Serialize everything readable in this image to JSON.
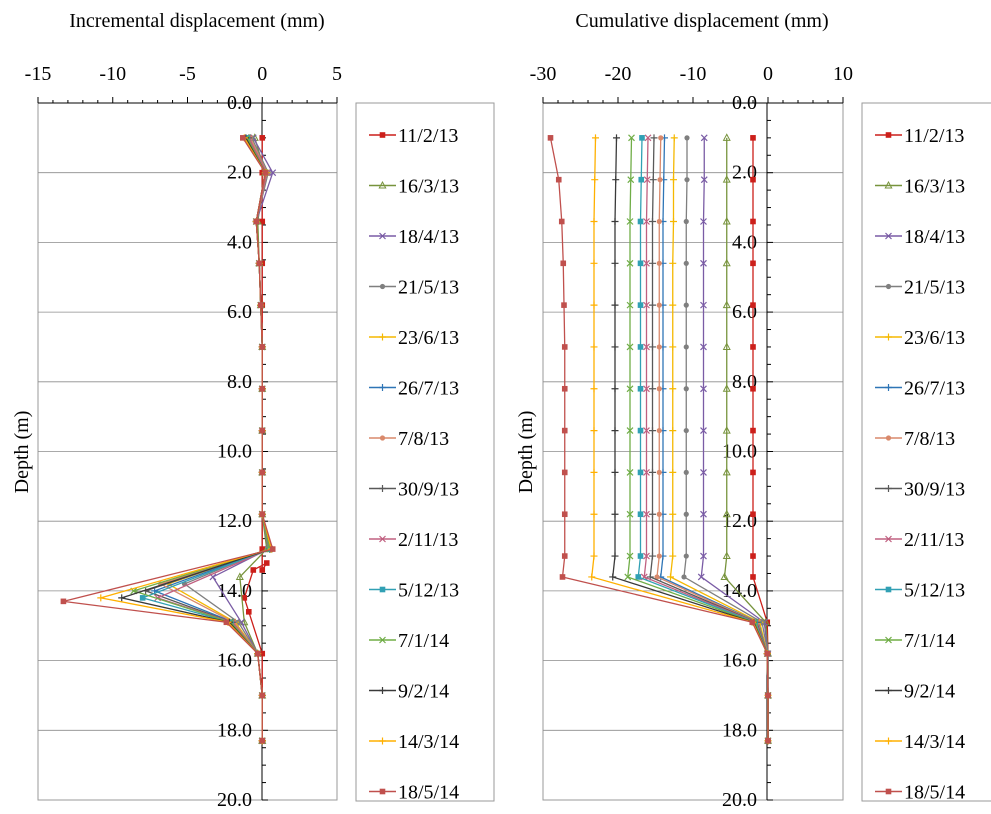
{
  "chart_data": [
    {
      "type": "line",
      "title": "Incremental displacement (mm)",
      "xlabel": "Incremental displacement (mm)",
      "ylabel": "Depth (m)",
      "xlim": [
        -15,
        5
      ],
      "ylim": [
        0,
        20
      ],
      "y_inverted": true,
      "x_ticks": [
        "-15",
        "-10",
        "-5",
        "0",
        "5"
      ],
      "y_ticks": [
        "0.0",
        "2.0",
        "4.0",
        "6.0",
        "8.0",
        "10.0",
        "12.0",
        "14.0",
        "16.0",
        "18.0",
        "20.0"
      ],
      "grid": "horizontal",
      "legend_position": "right",
      "series": [
        {
          "name": "11/2/13",
          "color": "#cc1f1a",
          "marker": "square",
          "x": [
            0,
            0,
            0,
            0,
            0,
            0,
            0,
            0,
            0,
            0,
            0,
            0,
            0.3,
            -0.6,
            -1.2,
            -0.9,
            0,
            0,
            0,
            0
          ],
          "y": [
            1,
            2,
            3.4,
            4.6,
            5.8,
            7,
            8.2,
            9.4,
            10.6,
            11.8,
            12.8,
            13.4,
            13.2,
            13.4,
            14.2,
            14.6,
            15.8,
            17,
            18.3,
            18.3
          ]
        },
        {
          "name": "16/3/13",
          "color": "#77933c",
          "marker": "triangle",
          "x": [
            -0.5,
            0.2,
            -0.3,
            -0.2,
            -0.1,
            0,
            0,
            0,
            0,
            0,
            0.3,
            -1.5,
            -1.2,
            -0.3,
            0,
            0,
            0
          ],
          "y": [
            1,
            2,
            3.4,
            4.6,
            5.8,
            7,
            8.2,
            9.4,
            10.6,
            11.8,
            12.8,
            13.6,
            14.9,
            15.8,
            17,
            18.3,
            18.3
          ]
        },
        {
          "name": "18/4/13",
          "color": "#7a5ca5",
          "marker": "x",
          "x": [
            -0.6,
            0.7,
            -0.4,
            -0.2,
            -0.1,
            0,
            0,
            0,
            0,
            0,
            0.4,
            -3.3,
            -1.4,
            -0.3,
            0,
            0,
            0
          ],
          "y": [
            1,
            2,
            3.4,
            4.6,
            5.8,
            7,
            8.2,
            9.4,
            10.6,
            11.8,
            12.8,
            13.6,
            14.9,
            15.8,
            17,
            18.3,
            18.3
          ]
        },
        {
          "name": "21/5/13",
          "color": "#7f7f7f",
          "marker": "circle",
          "x": [
            -0.7,
            0.4,
            -0.4,
            -0.2,
            -0.1,
            0,
            0,
            0,
            0,
            0,
            0.4,
            -5.2,
            -1.6,
            -0.3,
            0,
            0,
            0
          ],
          "y": [
            1,
            2,
            3.4,
            4.6,
            5.8,
            7,
            8.2,
            9.4,
            10.6,
            11.8,
            12.8,
            13.8,
            14.9,
            15.8,
            17,
            18.3,
            18.3
          ]
        },
        {
          "name": "23/6/13",
          "color": "#f5b800",
          "marker": "plus",
          "x": [
            -0.8,
            0.3,
            -0.4,
            -0.2,
            -0.1,
            0,
            0,
            0,
            0,
            0,
            0.5,
            -6.3,
            -1.8,
            -0.3,
            0,
            0,
            0
          ],
          "y": [
            1,
            2,
            3.4,
            4.6,
            5.8,
            7,
            8.2,
            9.4,
            10.6,
            11.8,
            12.8,
            13.8,
            14.9,
            15.8,
            17,
            18.3,
            18.3
          ]
        },
        {
          "name": "26/7/13",
          "color": "#2e75b6",
          "marker": "plus",
          "x": [
            -0.8,
            0.2,
            -0.4,
            -0.2,
            -0.1,
            0,
            0,
            0,
            0,
            0,
            0.5,
            -7.2,
            -1.9,
            -0.3,
            0,
            0,
            0
          ],
          "y": [
            1,
            2,
            3.4,
            4.6,
            5.8,
            7,
            8.2,
            9.4,
            10.6,
            11.8,
            12.8,
            14,
            14.9,
            15.8,
            17,
            18.3,
            18.3
          ]
        },
        {
          "name": "7/8/13",
          "color": "#d9896b",
          "marker": "circle",
          "x": [
            -0.8,
            0.3,
            -0.4,
            -0.2,
            -0.1,
            0,
            0,
            0,
            0,
            0,
            0.5,
            -6.8,
            -1.9,
            -0.3,
            0,
            0,
            0
          ],
          "y": [
            1,
            2,
            3.4,
            4.6,
            5.8,
            7,
            8.2,
            9.4,
            10.6,
            11.8,
            12.8,
            13.8,
            14.9,
            15.8,
            17,
            18.3,
            18.3
          ]
        },
        {
          "name": "30/9/13",
          "color": "#595959",
          "marker": "plus",
          "x": [
            -0.9,
            0.2,
            -0.4,
            -0.2,
            -0.1,
            0,
            0,
            0,
            0,
            0,
            0.5,
            -7.8,
            -2,
            -0.3,
            0,
            0,
            0
          ],
          "y": [
            1,
            2,
            3.4,
            4.6,
            5.8,
            7,
            8.2,
            9.4,
            10.6,
            11.8,
            12.8,
            14,
            14.9,
            15.8,
            17,
            18.3,
            18.3
          ]
        },
        {
          "name": "2/11/13",
          "color": "#c06080",
          "marker": "x",
          "x": [
            -0.9,
            0.3,
            -0.4,
            -0.2,
            -0.1,
            0,
            0,
            0,
            0,
            0,
            0.5,
            -7,
            -2,
            -0.3,
            0,
            0,
            0
          ],
          "y": [
            1,
            2,
            3.4,
            4.6,
            5.8,
            7,
            8.2,
            9.4,
            10.6,
            11.8,
            12.8,
            14.2,
            14.9,
            15.8,
            17,
            18.3,
            18.3
          ]
        },
        {
          "name": "5/12/13",
          "color": "#31a0b4",
          "marker": "square",
          "x": [
            -1,
            0.2,
            -0.4,
            -0.2,
            -0.1,
            0,
            0,
            0,
            0,
            0,
            0.5,
            -8,
            -2.1,
            -0.3,
            0,
            0,
            0
          ],
          "y": [
            1,
            2,
            3.4,
            4.6,
            5.8,
            7,
            8.2,
            9.4,
            10.6,
            11.8,
            12.8,
            14.2,
            14.9,
            15.8,
            17,
            18.3,
            18.3
          ]
        },
        {
          "name": "7/1/14",
          "color": "#70ad47",
          "marker": "x",
          "x": [
            -1,
            0.2,
            -0.4,
            -0.2,
            -0.1,
            0,
            0,
            0,
            0,
            0,
            0.5,
            -8.6,
            -2.1,
            -0.3,
            0,
            0,
            0
          ],
          "y": [
            1,
            2,
            3.4,
            4.6,
            5.8,
            7,
            8.2,
            9.4,
            10.6,
            11.8,
            12.8,
            14,
            14.9,
            15.8,
            17,
            18.3,
            18.3
          ]
        },
        {
          "name": "9/2/14",
          "color": "#3a3a3a",
          "marker": "plus",
          "x": [
            -1.1,
            0.2,
            -0.4,
            -0.2,
            -0.1,
            0,
            0,
            0,
            0,
            0,
            0.6,
            -9.4,
            -2.2,
            -0.3,
            0,
            0,
            0
          ],
          "y": [
            1,
            2,
            3.4,
            4.6,
            5.8,
            7,
            8.2,
            9.4,
            10.6,
            11.8,
            12.8,
            14.2,
            14.9,
            15.8,
            17,
            18.3,
            18.3
          ]
        },
        {
          "name": "14/3/14",
          "color": "#ffb000",
          "marker": "plus",
          "x": [
            -1.2,
            0.2,
            -0.4,
            -0.2,
            -0.1,
            0,
            0,
            0,
            0,
            0,
            0.6,
            -10.8,
            -2.3,
            -0.3,
            0,
            0,
            0
          ],
          "y": [
            1,
            2,
            3.4,
            4.6,
            5.8,
            7,
            8.2,
            9.4,
            10.6,
            11.8,
            12.8,
            14.2,
            14.9,
            15.8,
            17,
            18.3,
            18.3
          ]
        },
        {
          "name": "18/5/14",
          "color": "#c0504d",
          "marker": "square",
          "x": [
            -1.3,
            0.2,
            -0.4,
            -0.2,
            -0.1,
            0,
            0,
            0,
            0,
            0,
            0.7,
            -13.3,
            -2.4,
            -0.3,
            0,
            0,
            0
          ],
          "y": [
            1,
            2,
            3.4,
            4.6,
            5.8,
            7,
            8.2,
            9.4,
            10.6,
            11.8,
            12.8,
            14.3,
            14.9,
            15.8,
            17,
            18.3,
            18.3
          ]
        }
      ]
    },
    {
      "type": "line",
      "title": "Cumulative displacement (mm)",
      "xlabel": "Cumulative displacement (mm)",
      "ylabel": "Depth (m)",
      "xlim": [
        -30,
        10
      ],
      "ylim": [
        0,
        20
      ],
      "y_inverted": true,
      "x_ticks": [
        "-30",
        "-20",
        "-10",
        "0",
        "10"
      ],
      "y_ticks": [
        "0.0",
        "2.0",
        "4.0",
        "6.0",
        "8.0",
        "10.0",
        "12.0",
        "14.0",
        "16.0",
        "18.0",
        "20.0"
      ],
      "grid": "horizontal",
      "legend_position": "right",
      "depths": [
        1,
        2.2,
        3.4,
        4.6,
        5.8,
        7,
        8.2,
        9.4,
        10.6,
        11.8,
        13,
        13.6,
        14.9,
        15.8,
        17,
        18.3
      ],
      "series": [
        {
          "name": "11/2/13",
          "color": "#cc1f1a",
          "marker": "square",
          "x": [
            -2,
            -2,
            -2,
            -2,
            -2,
            -2,
            -2,
            -2,
            -2,
            -2,
            -2,
            -2,
            -0.1,
            0,
            0,
            0
          ]
        },
        {
          "name": "16/3/13",
          "color": "#77933c",
          "marker": "triangle",
          "x": [
            -5.5,
            -5.5,
            -5.5,
            -5.5,
            -5.5,
            -5.5,
            -5.5,
            -5.5,
            -5.5,
            -5.5,
            -5.5,
            -5.8,
            -0.3,
            0,
            0,
            0
          ]
        },
        {
          "name": "18/4/13",
          "color": "#7a5ca5",
          "marker": "x",
          "x": [
            -8.5,
            -8.5,
            -8.6,
            -8.6,
            -8.6,
            -8.6,
            -8.6,
            -8.6,
            -8.6,
            -8.6,
            -8.6,
            -8.9,
            -0.5,
            0,
            0,
            0
          ]
        },
        {
          "name": "21/5/13",
          "color": "#7f7f7f",
          "marker": "circle",
          "x": [
            -10.8,
            -10.8,
            -10.9,
            -10.9,
            -10.9,
            -10.9,
            -10.9,
            -10.9,
            -10.9,
            -10.9,
            -10.9,
            -11.2,
            -0.8,
            0,
            0,
            0
          ]
        },
        {
          "name": "23/6/13",
          "color": "#f5b800",
          "marker": "plus",
          "x": [
            -12.5,
            -12.6,
            -12.6,
            -12.7,
            -12.7,
            -12.7,
            -12.7,
            -12.7,
            -12.7,
            -12.7,
            -12.7,
            -13,
            -1.1,
            -0.1,
            0,
            0
          ]
        },
        {
          "name": "26/7/13",
          "color": "#2e75b6",
          "marker": "plus",
          "x": [
            -13.8,
            -13.9,
            -14,
            -14,
            -14,
            -14,
            -14,
            -14,
            -14,
            -14,
            -14,
            -14.3,
            -1.3,
            -0.1,
            0,
            0
          ]
        },
        {
          "name": "7/8/13",
          "color": "#d9896b",
          "marker": "circle",
          "x": [
            -14.3,
            -14.4,
            -14.5,
            -14.5,
            -14.5,
            -14.5,
            -14.5,
            -14.5,
            -14.5,
            -14.5,
            -14.5,
            -14.8,
            -1.4,
            -0.1,
            0,
            0
          ]
        },
        {
          "name": "30/9/13",
          "color": "#595959",
          "marker": "plus",
          "x": [
            -15.2,
            -15.3,
            -15.4,
            -15.4,
            -15.4,
            -15.4,
            -15.4,
            -15.4,
            -15.4,
            -15.4,
            -15.4,
            -15.7,
            -1.5,
            -0.1,
            0,
            0
          ]
        },
        {
          "name": "2/11/13",
          "color": "#c06080",
          "marker": "x",
          "x": [
            -16,
            -16.1,
            -16.2,
            -16.2,
            -16.2,
            -16.2,
            -16.2,
            -16.2,
            -16.2,
            -16.2,
            -16.2,
            -16.5,
            -1.6,
            -0.1,
            0,
            0
          ]
        },
        {
          "name": "5/12/13",
          "color": "#31a0b4",
          "marker": "square",
          "x": [
            -16.8,
            -16.9,
            -17,
            -17,
            -17,
            -17,
            -17,
            -17,
            -17,
            -17,
            -17,
            -17.3,
            -1.7,
            -0.1,
            0,
            0
          ]
        },
        {
          "name": "7/1/14",
          "color": "#70ad47",
          "marker": "x",
          "x": [
            -18.2,
            -18.3,
            -18.4,
            -18.4,
            -18.4,
            -18.4,
            -18.4,
            -18.4,
            -18.4,
            -18.4,
            -18.4,
            -18.7,
            -1.8,
            -0.1,
            0,
            0
          ]
        },
        {
          "name": "9/2/14",
          "color": "#3a3a3a",
          "marker": "plus",
          "x": [
            -20.2,
            -20.3,
            -20.4,
            -20.4,
            -20.4,
            -20.4,
            -20.4,
            -20.4,
            -20.4,
            -20.4,
            -20.4,
            -20.7,
            -1.9,
            -0.1,
            0,
            0
          ]
        },
        {
          "name": "14/3/14",
          "color": "#ffb000",
          "marker": "plus",
          "x": [
            -23,
            -23.1,
            -23.2,
            -23.2,
            -23.2,
            -23.2,
            -23.2,
            -23.2,
            -23.2,
            -23.2,
            -23.2,
            -23.5,
            -2,
            -0.1,
            0,
            0
          ]
        },
        {
          "name": "18/5/14",
          "color": "#c0504d",
          "marker": "square",
          "x": [
            -29,
            -27.9,
            -27.5,
            -27.3,
            -27.2,
            -27.1,
            -27.1,
            -27.1,
            -27.1,
            -27.1,
            -27.1,
            -27.4,
            -2.1,
            -0.1,
            0,
            0
          ]
        }
      ]
    }
  ]
}
